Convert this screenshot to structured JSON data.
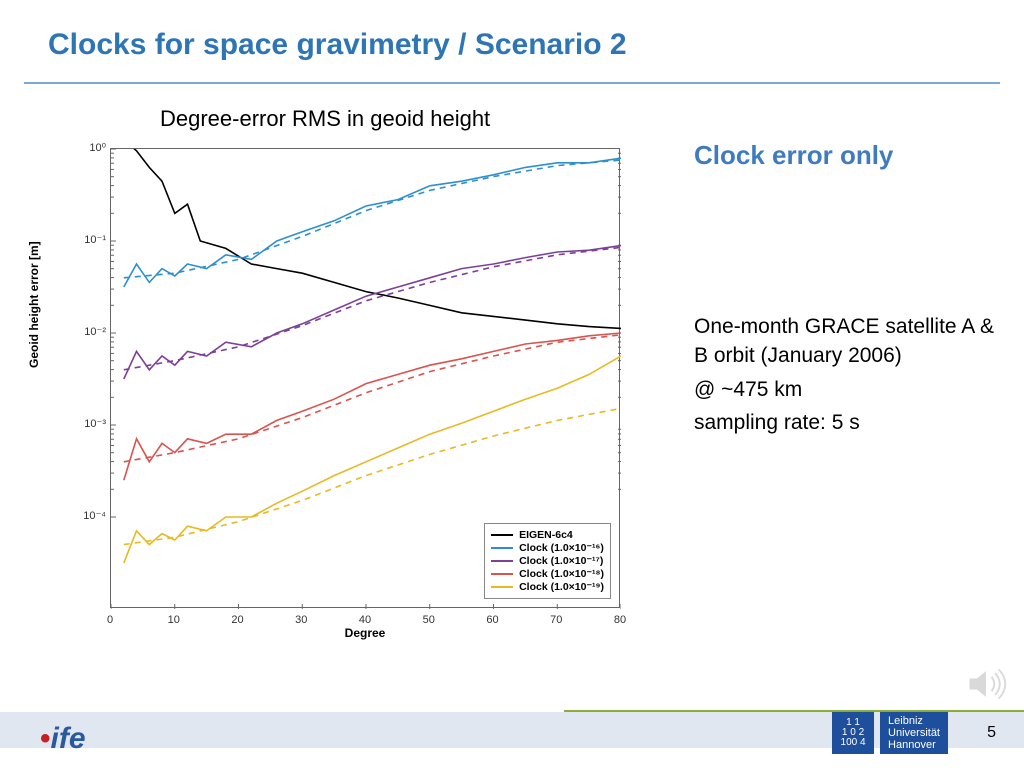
{
  "slide": {
    "title": "Clocks for space gravimetry / Scenario 2",
    "page_number": "5",
    "title_color": "#2e75b6",
    "rule_color": "#7ba7d7",
    "footer_bg": "#e1e7f0",
    "accent_line_color": "#8aad3a"
  },
  "sidebar": {
    "heading": "Clock error only",
    "heading_color": "#3f7cbf",
    "line1": "One-month GRACE satellite A & B orbit (January 2006)",
    "line2": "@ ~475 km",
    "line3": "sampling rate: 5 s"
  },
  "logo_left": {
    "text": "ife"
  },
  "logo_right": {
    "square_lines": [
      "1  1",
      "1 0 2",
      "100 4"
    ],
    "text_lines": [
      "Leibniz",
      "Universität",
      "Hannover"
    ],
    "bg": "#1d4f9c"
  },
  "chart": {
    "type": "line",
    "title": "Degree-error RMS in geoid height",
    "xlabel": "Degree",
    "ylabel": "Geoid height error [m]",
    "xlim": [
      0,
      80
    ],
    "xtick_positions": [
      0,
      10,
      20,
      30,
      40,
      50,
      60,
      70,
      80
    ],
    "xtick_labels": [
      "0",
      "10",
      "20",
      "30",
      "40",
      "50",
      "60",
      "70",
      "80"
    ],
    "y_log": true,
    "ylim_exp": [
      -5,
      0
    ],
    "ytick_exp": [
      -4,
      -3,
      -2,
      -1,
      0
    ],
    "ytick_labels": [
      "10⁻⁴",
      "10⁻³",
      "10⁻²",
      "10⁻¹",
      "10⁰"
    ],
    "background_color": "#ffffff",
    "axis_color": "#666666",
    "tick_color": "#333333",
    "label_fontsize": 12,
    "tick_fontsize": 11,
    "line_width": 1.6,
    "dash_pattern": "6,5",
    "legend": {
      "position": "bottom-right",
      "border_color": "#888888",
      "bg": "rgba(255,255,255,0.95)",
      "fontsize": 10.5,
      "items": [
        {
          "label": "EIGEN-6c4",
          "color": "#000000"
        },
        {
          "label": "Clock (1.0×10⁻¹⁶)",
          "color": "#2e8fcf"
        },
        {
          "label": "Clock (1.0×10⁻¹⁷)",
          "color": "#7e3f98"
        },
        {
          "label": "Clock (1.0×10⁻¹⁸)",
          "color": "#d9534f"
        },
        {
          "label": "Clock (1.0×10⁻¹⁹)",
          "color": "#e8b923"
        }
      ]
    },
    "series": [
      {
        "name": "EIGEN-6c4",
        "color": "#000000",
        "dashed": false,
        "x": [
          2,
          4,
          6,
          8,
          10,
          12,
          14,
          18,
          22,
          26,
          30,
          35,
          40,
          45,
          50,
          55,
          60,
          65,
          70,
          75,
          80
        ],
        "y_exp": [
          0.1,
          -0.02,
          -0.2,
          -0.35,
          -0.7,
          -0.6,
          -1.0,
          -1.08,
          -1.25,
          -1.3,
          -1.35,
          -1.45,
          -1.55,
          -1.62,
          -1.7,
          -1.78,
          -1.82,
          -1.86,
          -1.9,
          -1.93,
          -1.95
        ]
      },
      {
        "name": "Clock16_solid",
        "color": "#2e8fcf",
        "dashed": false,
        "x": [
          2,
          4,
          6,
          8,
          10,
          12,
          15,
          18,
          22,
          26,
          30,
          35,
          40,
          45,
          50,
          55,
          60,
          65,
          70,
          75,
          80
        ],
        "y_exp": [
          -1.5,
          -1.25,
          -1.45,
          -1.3,
          -1.38,
          -1.25,
          -1.3,
          -1.15,
          -1.2,
          -1.0,
          -0.9,
          -0.78,
          -0.62,
          -0.55,
          -0.4,
          -0.35,
          -0.28,
          -0.2,
          -0.15,
          -0.15,
          -0.1
        ]
      },
      {
        "name": "Clock16_dash",
        "color": "#2e8fcf",
        "dashed": true,
        "x": [
          2,
          10,
          20,
          30,
          40,
          50,
          60,
          70,
          80
        ],
        "y_exp": [
          -1.4,
          -1.35,
          -1.2,
          -0.95,
          -0.67,
          -0.45,
          -0.3,
          -0.18,
          -0.12
        ]
      },
      {
        "name": "Clock17_solid",
        "color": "#7e3f98",
        "dashed": false,
        "x": [
          2,
          4,
          6,
          8,
          10,
          12,
          15,
          18,
          22,
          26,
          30,
          35,
          40,
          45,
          50,
          55,
          60,
          65,
          70,
          75,
          80
        ],
        "y_exp": [
          -2.5,
          -2.2,
          -2.4,
          -2.25,
          -2.35,
          -2.2,
          -2.25,
          -2.1,
          -2.15,
          -2.0,
          -1.9,
          -1.75,
          -1.6,
          -1.5,
          -1.4,
          -1.3,
          -1.25,
          -1.18,
          -1.12,
          -1.1,
          -1.05
        ]
      },
      {
        "name": "Clock17_dash",
        "color": "#7e3f98",
        "dashed": true,
        "x": [
          2,
          10,
          20,
          30,
          40,
          50,
          60,
          70,
          80
        ],
        "y_exp": [
          -2.4,
          -2.3,
          -2.15,
          -1.92,
          -1.65,
          -1.45,
          -1.28,
          -1.15,
          -1.07
        ]
      },
      {
        "name": "Clock18_solid",
        "color": "#d9534f",
        "dashed": false,
        "x": [
          2,
          4,
          6,
          8,
          10,
          12,
          15,
          18,
          22,
          26,
          30,
          35,
          40,
          45,
          50,
          55,
          60,
          65,
          70,
          75,
          80
        ],
        "y_exp": [
          -3.6,
          -3.15,
          -3.4,
          -3.2,
          -3.3,
          -3.15,
          -3.2,
          -3.1,
          -3.1,
          -2.95,
          -2.85,
          -2.72,
          -2.55,
          -2.45,
          -2.35,
          -2.28,
          -2.2,
          -2.12,
          -2.08,
          -2.03,
          -2.0
        ]
      },
      {
        "name": "Clock18_dash",
        "color": "#d9534f",
        "dashed": true,
        "x": [
          2,
          10,
          20,
          30,
          40,
          50,
          60,
          70,
          80
        ],
        "y_exp": [
          -3.4,
          -3.3,
          -3.15,
          -2.92,
          -2.65,
          -2.42,
          -2.25,
          -2.1,
          -2.02
        ]
      },
      {
        "name": "Clock19_solid",
        "color": "#e8b923",
        "dashed": false,
        "x": [
          2,
          4,
          6,
          8,
          10,
          12,
          15,
          18,
          22,
          26,
          30,
          35,
          40,
          45,
          50,
          55,
          60,
          65,
          70,
          75,
          80
        ],
        "y_exp": [
          -4.5,
          -4.15,
          -4.3,
          -4.18,
          -4.25,
          -4.1,
          -4.15,
          -4.0,
          -4.0,
          -3.85,
          -3.72,
          -3.55,
          -3.4,
          -3.25,
          -3.1,
          -2.98,
          -2.85,
          -2.72,
          -2.6,
          -2.45,
          -2.25
        ]
      },
      {
        "name": "Clock19_dash",
        "color": "#e8b923",
        "dashed": true,
        "x": [
          2,
          10,
          20,
          30,
          40,
          50,
          60,
          70,
          80
        ],
        "y_exp": [
          -4.3,
          -4.22,
          -4.05,
          -3.82,
          -3.55,
          -3.32,
          -3.12,
          -2.95,
          -2.82
        ]
      }
    ]
  }
}
